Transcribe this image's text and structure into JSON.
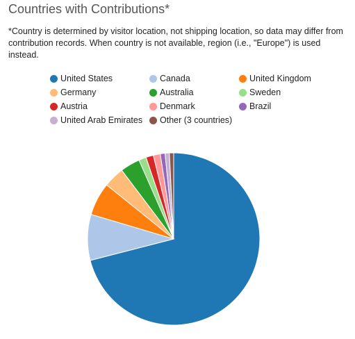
{
  "title": "Countries with Contributions*",
  "note": "*Country is determined by visitor location, not shipping location, so data may differ from contribution records. When country is not available, region (i.e., \"Europe\") is used instead.",
  "chart_data": {
    "type": "pie",
    "title": "Countries with Contributions*",
    "legend_position": "top",
    "labels": [
      "United States",
      "Canada",
      "United Kingdom",
      "Germany",
      "Australia",
      "Sweden",
      "Austria",
      "Denmark",
      "Brazil",
      "United Arab Emirates",
      "Other (3 countries)"
    ],
    "values": [
      71.0,
      8.6,
      6.2,
      3.9,
      3.7,
      1.4,
      1.4,
      1.3,
      0.9,
      0.8,
      0.8
    ],
    "colors": [
      "#1f77b4",
      "#aec7e8",
      "#ff7f0e",
      "#ffbb78",
      "#2ca02c",
      "#98df8a",
      "#d62728",
      "#ff9896",
      "#9467bd",
      "#c5b0d5",
      "#8c564b"
    ]
  }
}
